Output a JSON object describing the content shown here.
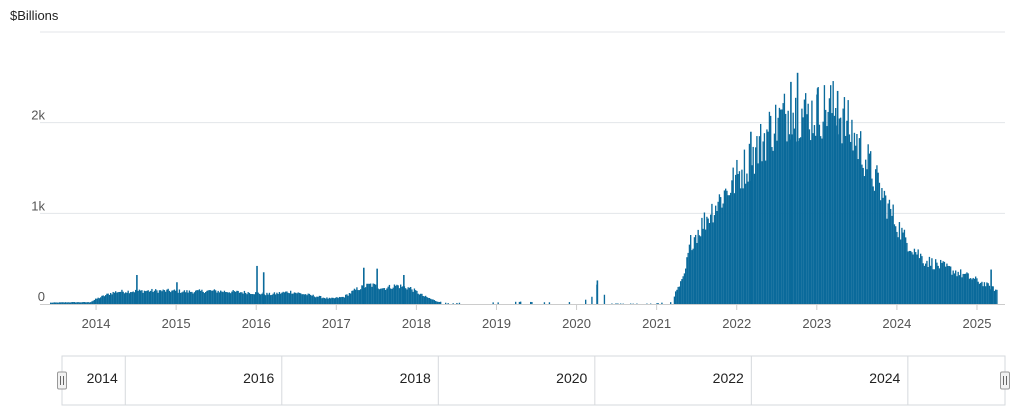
{
  "chart_data": {
    "type": "bar",
    "title": "",
    "unit_label": "$Billions",
    "xlabel": "",
    "ylabel": "",
    "ylim": [
      0,
      3000
    ],
    "grid": true,
    "legend": "none",
    "y_ticks": [
      {
        "value": 0,
        "label": "0"
      },
      {
        "value": 1000,
        "label": "1k"
      },
      {
        "value": 2000,
        "label": "2k"
      },
      {
        "value": 3000,
        "label": ""
      }
    ],
    "x_ticks": [
      "2014",
      "2015",
      "2016",
      "2017",
      "2018",
      "2019",
      "2020",
      "2021",
      "2022",
      "2023",
      "2024",
      "2025"
    ],
    "x_range": [
      "2013-04",
      "2025-04"
    ],
    "colors": {
      "bar": "#0a6a9b",
      "grid": "#e3e6ea"
    },
    "series": [
      {
        "values": [
          {
            "x": "2013-06",
            "y": 15
          },
          {
            "x": "2013-09",
            "y": 20
          },
          {
            "x": "2013-12",
            "y": 20
          },
          {
            "x": "2014-01",
            "y": 60
          },
          {
            "x": "2014-03",
            "y": 120
          },
          {
            "x": "2014-04",
            "y": 140
          },
          {
            "x": "2014-06",
            "y": 145
          },
          {
            "x": "2014-09",
            "y": 150
          },
          {
            "x": "2014-12",
            "y": 150
          },
          {
            "x": "2015-03",
            "y": 140
          },
          {
            "x": "2015-06",
            "y": 150
          },
          {
            "x": "2015-09",
            "y": 140
          },
          {
            "x": "2015-12",
            "y": 130
          },
          {
            "x": "2016-03",
            "y": 110
          },
          {
            "x": "2016-06",
            "y": 140
          },
          {
            "x": "2016-09",
            "y": 100
          },
          {
            "x": "2016-12",
            "y": 60
          },
          {
            "x": "2017-02",
            "y": 80
          },
          {
            "x": "2017-04",
            "y": 170
          },
          {
            "x": "2017-06",
            "y": 220
          },
          {
            "x": "2017-08",
            "y": 180
          },
          {
            "x": "2017-10",
            "y": 210
          },
          {
            "x": "2017-12",
            "y": 180
          },
          {
            "x": "2018-02",
            "y": 90
          },
          {
            "x": "2018-04",
            "y": 30
          },
          {
            "x": "2018-06",
            "y": 5
          },
          {
            "x": "2018-09",
            "y": 30
          },
          {
            "x": "2019-01",
            "y": 20
          },
          {
            "x": "2019-06",
            "y": 25
          },
          {
            "x": "2019-12",
            "y": 20
          },
          {
            "x": "2020-03",
            "y": 60
          },
          {
            "x": "2020-04",
            "y": 240
          },
          {
            "x": "2020-06",
            "y": 5
          },
          {
            "x": "2020-12",
            "y": 5
          },
          {
            "x": "2021-03",
            "y": 20
          },
          {
            "x": "2021-05",
            "y": 300
          },
          {
            "x": "2021-06",
            "y": 700
          },
          {
            "x": "2021-09",
            "y": 1050
          },
          {
            "x": "2021-12",
            "y": 1350
          },
          {
            "x": "2022-03",
            "y": 1650
          },
          {
            "x": "2022-06",
            "y": 2000
          },
          {
            "x": "2022-09",
            "y": 2200
          },
          {
            "x": "2022-12",
            "y": 2150
          },
          {
            "x": "2023-03",
            "y": 2250
          },
          {
            "x": "2023-05",
            "y": 2100
          },
          {
            "x": "2023-08",
            "y": 1700
          },
          {
            "x": "2023-11",
            "y": 1200
          },
          {
            "x": "2024-02",
            "y": 750
          },
          {
            "x": "2024-05",
            "y": 500
          },
          {
            "x": "2024-08",
            "y": 420
          },
          {
            "x": "2024-11",
            "y": 330
          },
          {
            "x": "2025-02",
            "y": 230
          },
          {
            "x": "2025-04",
            "y": 150
          }
        ],
        "spikes": [
          {
            "x": "2014-07",
            "y": 320
          },
          {
            "x": "2015-01",
            "y": 240
          },
          {
            "x": "2016-01",
            "y": 420
          },
          {
            "x": "2016-02",
            "y": 350
          },
          {
            "x": "2017-05",
            "y": 400
          },
          {
            "x": "2017-07",
            "y": 390
          },
          {
            "x": "2017-11",
            "y": 320
          },
          {
            "x": "2020-04",
            "y": 260
          },
          {
            "x": "2022-03",
            "y": 1900
          },
          {
            "x": "2022-09",
            "y": 2450
          },
          {
            "x": "2022-10",
            "y": 2550
          },
          {
            "x": "2023-01",
            "y": 2380
          },
          {
            "x": "2023-04",
            "y": 2350
          },
          {
            "x": "2025-03",
            "y": 380
          }
        ]
      }
    ]
  },
  "navigator": {
    "ticks": [
      "2014",
      "2016",
      "2018",
      "2020",
      "2022",
      "2024"
    ]
  }
}
